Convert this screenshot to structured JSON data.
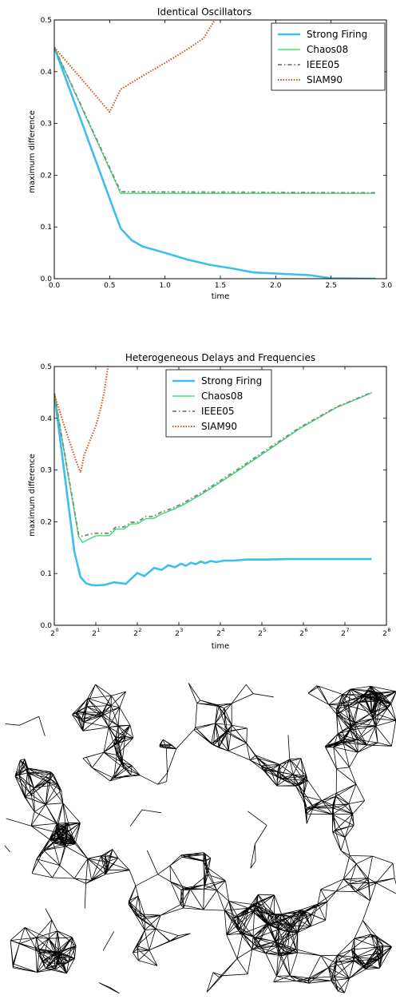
{
  "chart_data": [
    {
      "type": "line",
      "title": "Identical Oscillators",
      "xlabel": "time",
      "ylabel": "maximum difference",
      "xlim": [
        0.0,
        3.0
      ],
      "ylim": [
        0.0,
        0.5
      ],
      "xticks": [
        "0.0",
        "0.5",
        "1.0",
        "1.5",
        "2.0",
        "2.5",
        "3.0"
      ],
      "xtick_values": [
        0,
        0.5,
        1.0,
        1.5,
        2.0,
        2.5,
        3.0
      ],
      "yticks": [
        "0.0",
        "0.1",
        "0.2",
        "0.3",
        "0.4",
        "0.5"
      ],
      "ytick_values": [
        0,
        0.1,
        0.2,
        0.3,
        0.4,
        0.5
      ],
      "legend_position": "top-right",
      "grid": false,
      "series": [
        {
          "name": "Strong Firing",
          "color": "#3fbdf0",
          "style": "solid-thick",
          "x": [
            0.0,
            0.5,
            0.6,
            0.7,
            0.8,
            1.0,
            1.2,
            1.4,
            1.6,
            1.8,
            2.0,
            2.3,
            2.5,
            2.9
          ],
          "y": [
            0.447,
            0.155,
            0.097,
            0.074,
            0.062,
            0.05,
            0.037,
            0.027,
            0.02,
            0.012,
            0.01,
            0.007,
            0.001,
            0.0
          ]
        },
        {
          "name": "Chaos08",
          "color": "#22dd66",
          "style": "solid",
          "x": [
            0.0,
            0.6,
            2.9
          ],
          "y": [
            0.447,
            0.165,
            0.165
          ]
        },
        {
          "name": "IEEE05",
          "color": "#888888",
          "style": "dashdot",
          "x": [
            0.0,
            0.6,
            2.9
          ],
          "y": [
            0.447,
            0.168,
            0.166
          ]
        },
        {
          "name": "SIAM90",
          "color": "#d4501e",
          "style": "dotted",
          "x": [
            0.0,
            0.25,
            0.5,
            0.6,
            0.8,
            1.0,
            1.2,
            1.35,
            1.42,
            1.45
          ],
          "y": [
            0.447,
            0.385,
            0.322,
            0.366,
            0.392,
            0.417,
            0.443,
            0.465,
            0.49,
            0.5
          ]
        }
      ]
    },
    {
      "type": "line",
      "title": "Heterogeneous Delays and Frequencies",
      "xlabel": "time",
      "ylabel": "maximum difference",
      "xscale": "log2",
      "xlim": [
        1,
        256
      ],
      "ylim": [
        0.0,
        0.5
      ],
      "xticks": [
        {
          "base": "2",
          "exp": "0"
        },
        {
          "base": "2",
          "exp": "1"
        },
        {
          "base": "2",
          "exp": "2"
        },
        {
          "base": "2",
          "exp": "3"
        },
        {
          "base": "2",
          "exp": "4"
        },
        {
          "base": "2",
          "exp": "5"
        },
        {
          "base": "2",
          "exp": "6"
        },
        {
          "base": "2",
          "exp": "7"
        },
        {
          "base": "2",
          "exp": "8"
        }
      ],
      "xtick_values": [
        1,
        2,
        4,
        8,
        16,
        32,
        64,
        128,
        256
      ],
      "yticks": [
        "0.0",
        "0.1",
        "0.2",
        "0.3",
        "0.4",
        "0.5"
      ],
      "ytick_values": [
        0,
        0.1,
        0.2,
        0.3,
        0.4,
        0.5
      ],
      "legend_position": "top-center",
      "grid": false,
      "series": [
        {
          "name": "Strong Firing",
          "color": "#3fbdf0",
          "style": "solid-thick",
          "x": [
            1.0,
            1.4,
            1.55,
            1.7,
            1.85,
            2.0,
            2.3,
            2.7,
            3.3,
            4.0,
            4.5,
            5.3,
            6.0,
            6.7,
            7.5,
            8.3,
            9.0,
            9.8,
            10.6,
            11.5,
            12.5,
            13.6,
            15,
            17,
            20,
            25,
            35,
            50,
            80,
            130,
            200
          ],
          "y": [
            0.448,
            0.142,
            0.093,
            0.081,
            0.078,
            0.077,
            0.078,
            0.083,
            0.08,
            0.101,
            0.095,
            0.111,
            0.107,
            0.116,
            0.112,
            0.119,
            0.115,
            0.121,
            0.118,
            0.123,
            0.12,
            0.124,
            0.122,
            0.125,
            0.125,
            0.127,
            0.127,
            0.128,
            0.128,
            0.128,
            0.128
          ]
        },
        {
          "name": "Chaos08",
          "color": "#22dd66",
          "style": "solid",
          "x": [
            1.0,
            1.5,
            1.6,
            1.8,
            2.0,
            2.2,
            2.5,
            2.8,
            3.2,
            3.6,
            4.0,
            4.6,
            5.2,
            6.0,
            7.0,
            8.5,
            12,
            20,
            35,
            60,
            110,
            200
          ],
          "y": [
            0.447,
            0.172,
            0.16,
            0.167,
            0.173,
            0.173,
            0.173,
            0.186,
            0.186,
            0.196,
            0.196,
            0.206,
            0.206,
            0.215,
            0.222,
            0.232,
            0.255,
            0.293,
            0.337,
            0.38,
            0.42,
            0.449
          ]
        },
        {
          "name": "IEEE05",
          "color": "#888888",
          "style": "dashdot",
          "x": [
            1.0,
            1.5,
            1.6,
            1.8,
            2.0,
            2.2,
            2.5,
            2.8,
            3.2,
            3.6,
            4.0,
            4.6,
            5.2,
            6.0,
            7.0,
            8.5,
            12,
            20,
            35,
            60,
            110,
            200
          ],
          "y": [
            0.448,
            0.176,
            0.172,
            0.176,
            0.178,
            0.178,
            0.178,
            0.19,
            0.19,
            0.199,
            0.199,
            0.21,
            0.21,
            0.219,
            0.225,
            0.235,
            0.258,
            0.296,
            0.34,
            0.382,
            0.421,
            0.45
          ]
        },
        {
          "name": "SIAM90",
          "color": "#d4501e",
          "style": "dotted",
          "x": [
            1.0,
            1.2,
            1.45,
            1.55,
            1.65,
            1.8,
            2.0,
            2.15,
            2.3,
            2.45
          ],
          "y": [
            0.447,
            0.38,
            0.315,
            0.295,
            0.33,
            0.355,
            0.385,
            0.415,
            0.45,
            0.5
          ]
        }
      ]
    }
  ],
  "network_graph": {
    "description_tag": "random-geometric-network",
    "seed": 7
  }
}
